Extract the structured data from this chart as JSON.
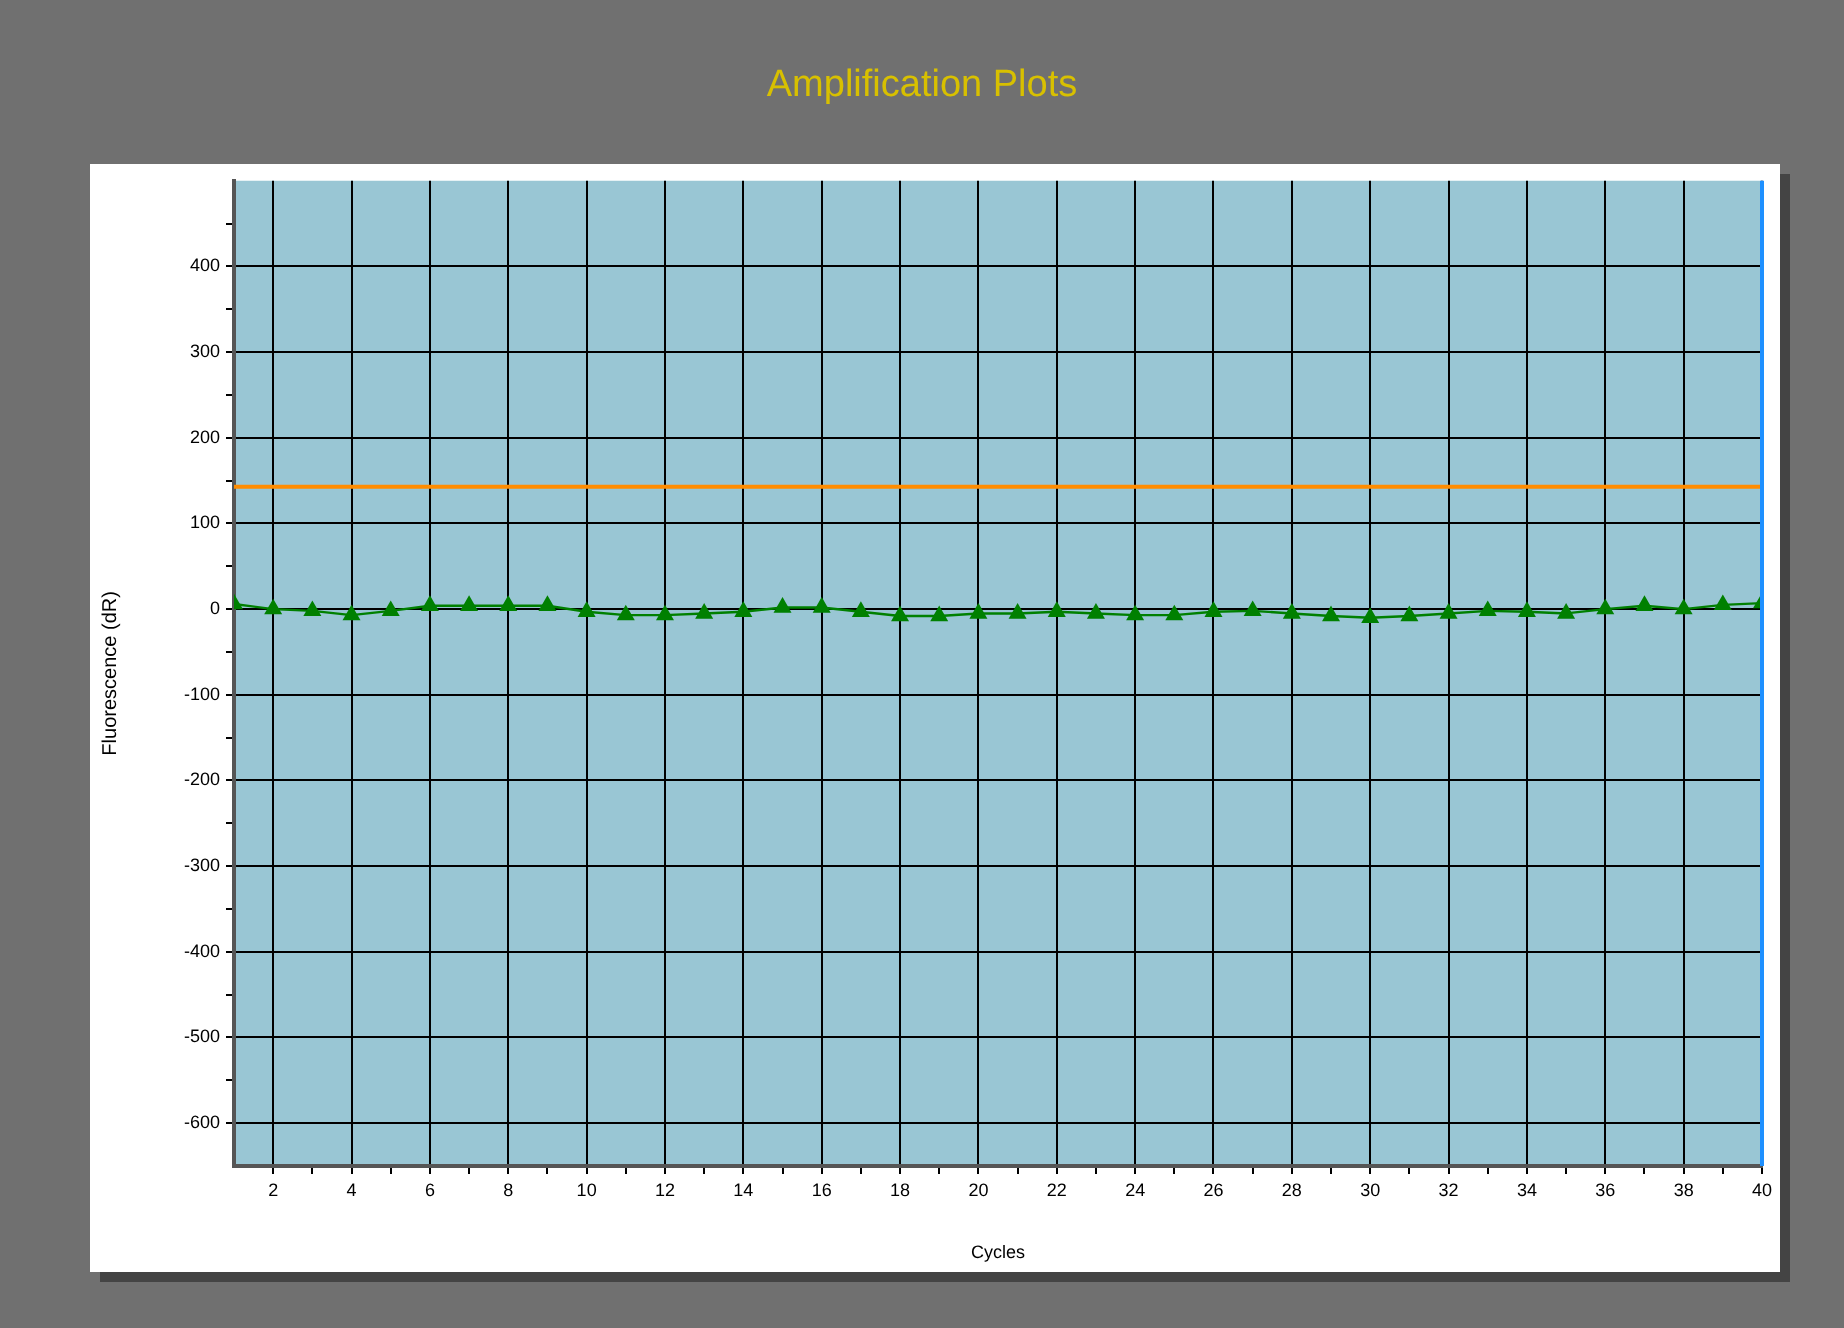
{
  "chart_data": {
    "type": "line",
    "title": "Amplification Plots",
    "xlabel": "Cycles",
    "ylabel": "Fluorescence (dR)",
    "x": [
      1,
      2,
      3,
      4,
      5,
      6,
      7,
      8,
      9,
      10,
      11,
      12,
      13,
      14,
      15,
      16,
      17,
      18,
      19,
      20,
      21,
      22,
      23,
      24,
      25,
      26,
      27,
      28,
      29,
      30,
      31,
      32,
      33,
      34,
      35,
      36,
      37,
      38,
      39,
      40
    ],
    "series": [
      {
        "color": "#008000",
        "values": [
          6,
          0,
          -2,
          -7,
          -2,
          4,
          4,
          4,
          4,
          -3,
          -7,
          -7,
          -5,
          -3,
          2,
          2,
          -3,
          -8,
          -8,
          -5,
          -5,
          -3,
          -5,
          -7,
          -7,
          -3,
          -2,
          -5,
          -8,
          -10,
          -8,
          -5,
          -2,
          -3,
          -5,
          0,
          4,
          0,
          5,
          7
        ]
      }
    ],
    "xlim": [
      1,
      40
    ],
    "xticks": [
      2,
      {
        "value": 3,
        "label": null
      },
      4,
      {
        "value": 5,
        "label": null
      },
      6,
      {
        "value": 7,
        "label": null
      },
      8,
      {
        "value": 9,
        "label": null
      },
      10,
      {
        "value": 11,
        "label": null
      },
      12,
      {
        "value": 13,
        "label": null
      },
      14,
      {
        "value": 15,
        "label": null
      },
      16,
      {
        "value": 17,
        "label": null
      },
      18,
      {
        "value": 19,
        "label": null
      },
      20,
      {
        "value": 21,
        "label": null
      },
      22,
      {
        "value": 23,
        "label": null
      },
      24,
      {
        "value": 25,
        "label": null
      },
      26,
      {
        "value": 27,
        "label": null
      },
      28,
      {
        "value": 29,
        "label": null
      },
      30,
      {
        "value": 31,
        "label": null
      },
      32,
      {
        "value": 33,
        "label": null
      },
      34,
      {
        "value": 35,
        "label": null
      },
      36,
      {
        "value": 37,
        "label": null
      },
      38,
      {
        "value": 39,
        "label": null
      },
      40
    ],
    "ylim": [
      -650,
      500
    ],
    "yticks": [
      -600,
      {
        "value": -550,
        "label": null
      },
      -500,
      {
        "value": -450,
        "label": null
      },
      -400,
      {
        "value": -350,
        "label": null
      },
      -300,
      {
        "value": -250,
        "label": null
      },
      -200,
      {
        "value": -150,
        "label": null
      },
      -100,
      {
        "value": -50,
        "label": null
      },
      0,
      {
        "value": 50,
        "label": null
      },
      100,
      {
        "value": 150,
        "label": null
      },
      200,
      {
        "value": 250,
        "label": null
      },
      300,
      {
        "value": 350,
        "label": null
      },
      400,
      {
        "value": 450,
        "label": null
      }
    ],
    "ref_lines": [
      {
        "axis": "y",
        "value": 143,
        "color": "#ff8c00"
      },
      {
        "axis": "x",
        "value": 40,
        "color": "#1e90ff"
      }
    ],
    "grid": true,
    "marker": "triangle",
    "line_style": "solid",
    "legend": false
  }
}
